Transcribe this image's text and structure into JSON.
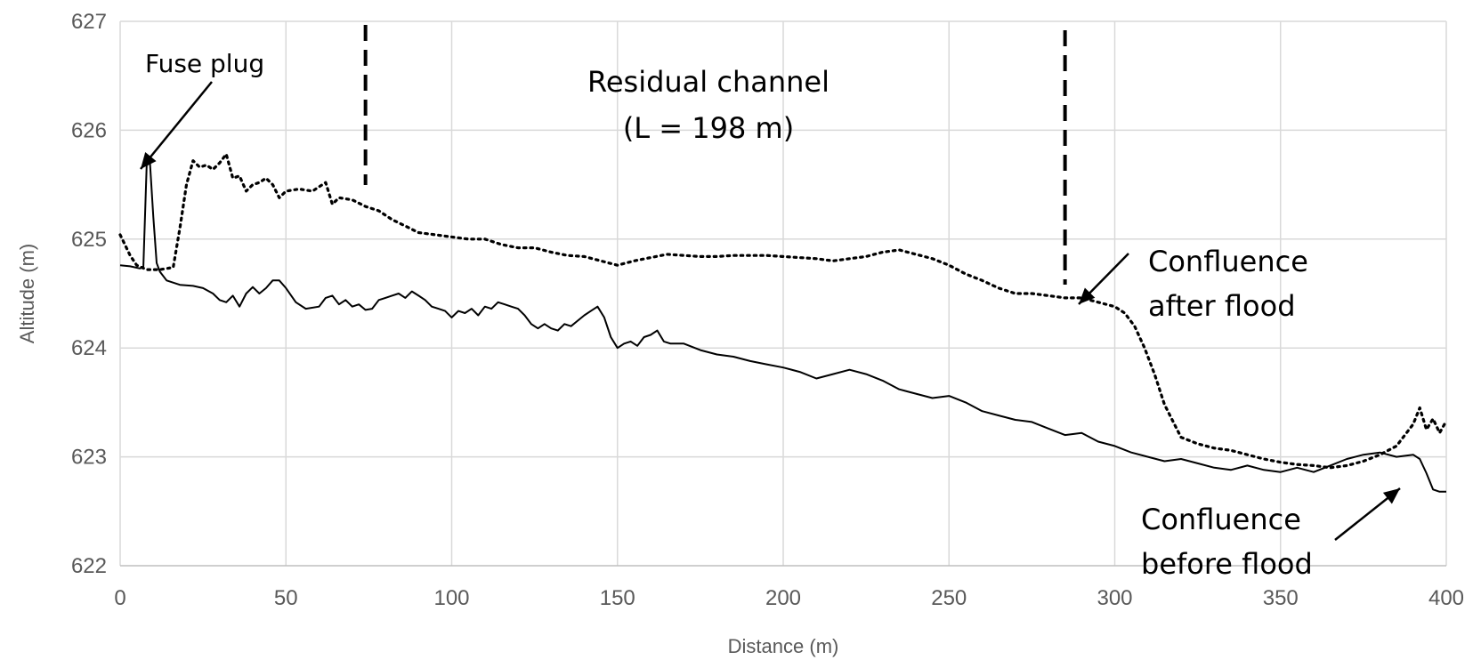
{
  "chart_data": {
    "type": "line",
    "title": "",
    "xlabel": "Distance (m)",
    "ylabel": "Altitude (m)",
    "xlim": [
      0,
      400
    ],
    "ylim": [
      622,
      627
    ],
    "xticks": [
      0,
      50,
      100,
      150,
      200,
      250,
      300,
      350,
      400
    ],
    "yticks": [
      622,
      623,
      624,
      625,
      626,
      627
    ],
    "grid": true,
    "legend": "none",
    "series": [
      {
        "style": "solid",
        "color": "#000000",
        "x": [
          0,
          3,
          6,
          7,
          8,
          9,
          10,
          11,
          12,
          14,
          18,
          22,
          25,
          28,
          30,
          32,
          34,
          36,
          38,
          40,
          42,
          44,
          46,
          48,
          50,
          53,
          56,
          60,
          62,
          64,
          66,
          68,
          70,
          72,
          74,
          76,
          78,
          80,
          82,
          84,
          86,
          88,
          90,
          92,
          94,
          96,
          98,
          100,
          102,
          104,
          106,
          108,
          110,
          112,
          114,
          116,
          118,
          120,
          122,
          124,
          126,
          128,
          130,
          132,
          134,
          136,
          138,
          140,
          142,
          144,
          146,
          148,
          150,
          152,
          154,
          156,
          158,
          160,
          162,
          164,
          166,
          170,
          175,
          180,
          185,
          190,
          195,
          200,
          205,
          210,
          215,
          220,
          225,
          230,
          235,
          240,
          245,
          250,
          255,
          260,
          265,
          270,
          275,
          280,
          285,
          290,
          295,
          300,
          305,
          310,
          315,
          320,
          325,
          330,
          335,
          340,
          345,
          350,
          355,
          360,
          365,
          370,
          375,
          380,
          385,
          390,
          392,
          394,
          396,
          398,
          400
        ],
        "y": [
          624.76,
          624.75,
          624.73,
          624.75,
          625.68,
          625.7,
          625.2,
          624.78,
          624.7,
          624.62,
          624.58,
          624.57,
          624.55,
          624.5,
          624.44,
          624.42,
          624.48,
          624.38,
          624.5,
          624.56,
          624.5,
          624.55,
          624.62,
          624.62,
          624.55,
          624.42,
          624.36,
          624.38,
          624.46,
          624.48,
          624.4,
          624.44,
          624.38,
          624.4,
          624.35,
          624.36,
          624.44,
          624.46,
          624.48,
          624.5,
          624.46,
          624.52,
          624.48,
          624.44,
          624.38,
          624.36,
          624.34,
          624.28,
          624.34,
          624.32,
          624.36,
          624.3,
          624.38,
          624.36,
          624.42,
          624.4,
          624.38,
          624.36,
          624.3,
          624.22,
          624.18,
          624.22,
          624.18,
          624.16,
          624.22,
          624.2,
          624.25,
          624.3,
          624.34,
          624.38,
          624.28,
          624.1,
          624.0,
          624.04,
          624.06,
          624.02,
          624.1,
          624.12,
          624.16,
          624.06,
          624.04,
          624.04,
          623.98,
          623.94,
          623.92,
          623.88,
          623.85,
          623.82,
          623.78,
          623.72,
          623.76,
          623.8,
          623.76,
          623.7,
          623.62,
          623.58,
          623.54,
          623.56,
          623.5,
          623.42,
          623.38,
          623.34,
          623.32,
          623.26,
          623.2,
          623.22,
          623.14,
          623.1,
          623.04,
          623.0,
          622.96,
          622.98,
          622.94,
          622.9,
          622.88,
          622.92,
          622.88,
          622.86,
          622.9,
          622.86,
          622.92,
          622.98,
          623.02,
          623.04,
          623.0,
          623.02,
          622.98,
          622.85,
          622.7,
          622.68,
          622.68
        ]
      },
      {
        "style": "dotted",
        "color": "#000000",
        "x": [
          0,
          3,
          5,
          8,
          12,
          16,
          18,
          20,
          22,
          24,
          26,
          28,
          30,
          32,
          34,
          36,
          38,
          40,
          42,
          44,
          46,
          48,
          50,
          54,
          58,
          62,
          64,
          66,
          70,
          74,
          78,
          82,
          86,
          90,
          95,
          100,
          105,
          110,
          115,
          120,
          125,
          130,
          135,
          140,
          145,
          150,
          155,
          160,
          165,
          170,
          175,
          180,
          185,
          190,
          195,
          200,
          205,
          210,
          215,
          220,
          225,
          230,
          235,
          240,
          245,
          250,
          255,
          260,
          265,
          270,
          275,
          280,
          285,
          290,
          295,
          300,
          303,
          306,
          309,
          312,
          315,
          318,
          320,
          325,
          330,
          335,
          340,
          345,
          350,
          355,
          360,
          365,
          370,
          375,
          380,
          385,
          388,
          390,
          392,
          394,
          396,
          398,
          400
        ],
        "y": [
          625.04,
          624.85,
          624.76,
          624.72,
          624.72,
          624.74,
          625.1,
          625.5,
          625.72,
          625.66,
          625.68,
          625.64,
          625.7,
          625.78,
          625.56,
          625.58,
          625.44,
          625.5,
          625.52,
          625.56,
          625.5,
          625.38,
          625.44,
          625.46,
          625.44,
          625.52,
          625.32,
          625.38,
          625.36,
          625.3,
          625.26,
          625.18,
          625.12,
          625.06,
          625.04,
          625.02,
          625.0,
          625.0,
          624.95,
          624.92,
          624.92,
          624.88,
          624.85,
          624.84,
          624.8,
          624.76,
          624.8,
          624.83,
          624.86,
          624.85,
          624.84,
          624.84,
          624.85,
          624.85,
          624.85,
          624.84,
          624.83,
          624.82,
          624.8,
          624.82,
          624.84,
          624.88,
          624.9,
          624.86,
          624.82,
          624.76,
          624.68,
          624.62,
          624.55,
          624.5,
          624.5,
          624.48,
          624.46,
          624.46,
          624.42,
          624.38,
          624.32,
          624.2,
          624.0,
          623.76,
          623.48,
          623.3,
          623.18,
          623.12,
          623.08,
          623.06,
          623.02,
          622.98,
          622.95,
          622.93,
          622.92,
          622.9,
          622.92,
          622.96,
          623.02,
          623.1,
          623.22,
          623.3,
          623.45,
          623.25,
          623.35,
          623.22,
          623.33
        ]
      }
    ],
    "vlines": [
      74,
      285
    ],
    "annotations": {
      "fuse_plug": "Fuse plug",
      "residual_line1": "Residual channel",
      "residual_line2": "(L = 198 m)",
      "confluence_after_line1": "Confluence",
      "confluence_after_line2": "after flood",
      "confluence_before_line1": "Confluence",
      "confluence_before_line2": "before flood"
    }
  }
}
